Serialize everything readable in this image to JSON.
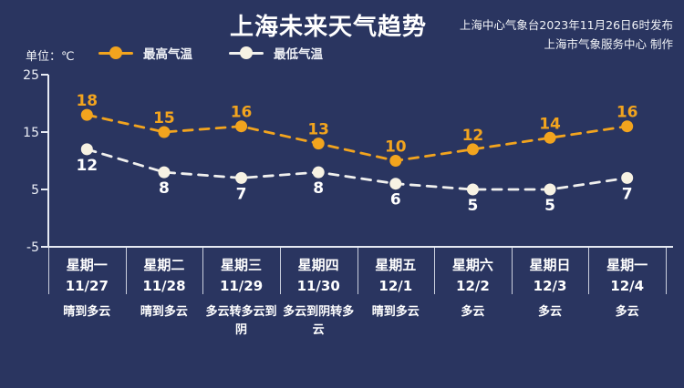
{
  "header": {
    "title": "上海未来天气趋势",
    "source_line1": "上海中心气象台2023年11月26日6时发布",
    "source_line2": "上海市气象服务中心 制作"
  },
  "unit_label": "单位：℃",
  "colors": {
    "background": "#2A3560",
    "axis": "#E6EAF3",
    "high_accent": "#F2A41E",
    "low_accent": "#F7F2E3",
    "text": "#FFFFFF"
  },
  "chart_data": {
    "type": "line",
    "title": "上海未来天气趋势",
    "categories": [
      {
        "day": "星期一",
        "date": "11/27",
        "weather": "晴到多云"
      },
      {
        "day": "星期二",
        "date": "11/28",
        "weather": "晴到多云"
      },
      {
        "day": "星期三",
        "date": "11/29",
        "weather": "多云转多云到阴"
      },
      {
        "day": "星期四",
        "date": "11/30",
        "weather": "多云到阴转多云"
      },
      {
        "day": "星期五",
        "date": "12/1",
        "weather": "晴到多云"
      },
      {
        "day": "星期六",
        "date": "12/2",
        "weather": "多云"
      },
      {
        "day": "星期日",
        "date": "12/3",
        "weather": "多云"
      },
      {
        "day": "星期一",
        "date": "12/4",
        "weather": "多云"
      }
    ],
    "series": [
      {
        "name": "最高气温",
        "values": [
          18,
          15,
          16,
          13,
          10,
          12,
          14,
          16
        ],
        "color": "#F2A41E",
        "dot_color": "#F2A41E",
        "label_color": "#F2A41E"
      },
      {
        "name": "最低气温",
        "values": [
          12,
          8,
          7,
          8,
          6,
          5,
          5,
          7
        ],
        "color": "#F0F0EE",
        "dot_color": "#F7F2E3",
        "label_color": "#FFFFFF"
      }
    ],
    "ylabel": "单位：℃",
    "ylim": [
      -5,
      25
    ],
    "yticks": [
      25,
      15,
      5,
      -5
    ],
    "grid": false,
    "legend_position": "top"
  }
}
